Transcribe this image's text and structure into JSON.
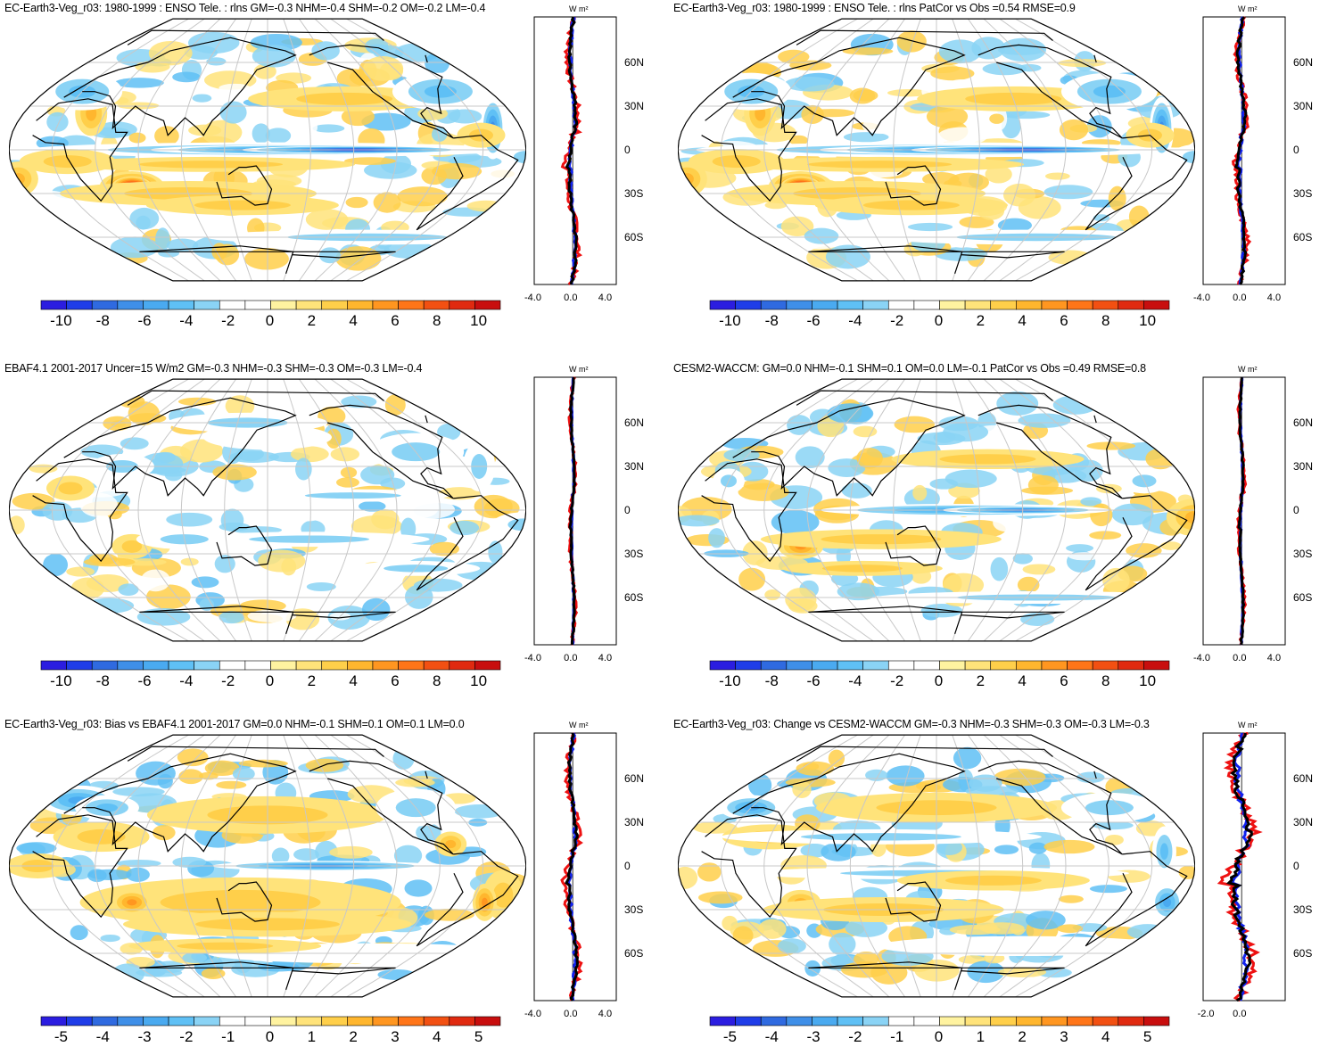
{
  "panels": [
    {
      "id": "p1",
      "title": "EC-Earth3-Veg_r03: 1980-1999 : ENSO Tele. : rlns GM=-0.3 NHM=-0.4 SHM=-0.2 OM=-0.2 LM=-0.4",
      "colorbar_ticks": [
        "-10",
        "-8",
        "-6",
        "-4",
        "-2",
        "0",
        "2",
        "4",
        "6",
        "8",
        "10"
      ],
      "colorbar_range": [
        -11,
        11
      ],
      "zonal_ticks": [
        "-4.0",
        "0.0",
        "4.0"
      ],
      "zonal_unit": "W m²",
      "lat_labels": [
        "60N",
        "30N",
        "0",
        "30S",
        "60S"
      ],
      "style": "enso"
    },
    {
      "id": "p2",
      "title": "EC-Earth3-Veg_r03: 1980-1999 : ENSO Tele. : rlns PatCor vs Obs =0.54 RMSE=0.9",
      "colorbar_ticks": [
        "-10",
        "-8",
        "-6",
        "-4",
        "-2",
        "0",
        "2",
        "4",
        "6",
        "8",
        "10"
      ],
      "colorbar_range": [
        -11,
        11
      ],
      "zonal_ticks": [
        "-4.0",
        "0.0",
        "4.0"
      ],
      "zonal_unit": "W m²",
      "lat_labels": [
        "60N",
        "30N",
        "0",
        "30S",
        "60S"
      ],
      "style": "enso"
    },
    {
      "id": "p3",
      "title": "EBAF4.1 2001-2017 Uncer=15 W/m2 GM=-0.3 NHM=-0.3 SHM=-0.3 OM=-0.3 LM=-0.4",
      "colorbar_ticks": [
        "-10",
        "-8",
        "-6",
        "-4",
        "-2",
        "0",
        "2",
        "4",
        "6",
        "8",
        "10"
      ],
      "colorbar_range": [
        -11,
        11
      ],
      "zonal_ticks": [
        "-4.0",
        "0.0",
        "4.0"
      ],
      "zonal_unit": "W m²",
      "lat_labels": [
        "60N",
        "30N",
        "0",
        "30S",
        "60S"
      ],
      "style": "obs"
    },
    {
      "id": "p4",
      "title": "CESM2-WACCM: GM=0.0 NHM=-0.1 SHM=0.1 OM=0.0 LM=-0.1 PatCor vs Obs =0.49 RMSE=0.8",
      "colorbar_ticks": [
        "-10",
        "-8",
        "-6",
        "-4",
        "-2",
        "0",
        "2",
        "4",
        "6",
        "8",
        "10"
      ],
      "colorbar_range": [
        -11,
        11
      ],
      "zonal_ticks": [
        "-4.0",
        "0.0",
        "4.0"
      ],
      "zonal_unit": "W m²",
      "lat_labels": [
        "60N",
        "30N",
        "0",
        "30S",
        "60S"
      ],
      "style": "cesm"
    },
    {
      "id": "p5",
      "title": "EC-Earth3-Veg_r03: Bias vs EBAF4.1 2001-2017 GM=0.0 NHM=-0.1 SHM=0.1 OM=0.1 LM=0.0",
      "colorbar_ticks": [
        "-5",
        "-4",
        "-3",
        "-2",
        "-1",
        "0",
        "1",
        "2",
        "3",
        "4",
        "5"
      ],
      "colorbar_range": [
        -5.5,
        5.5
      ],
      "zonal_ticks": [
        "-4.0",
        "0.0",
        "4.0"
      ],
      "zonal_unit": "W m²",
      "lat_labels": [
        "60N",
        "30N",
        "0",
        "30S",
        "60S"
      ],
      "style": "bias"
    },
    {
      "id": "p6",
      "title": "EC-Earth3-Veg_r03: Change vs CESM2-WACCM GM=-0.3 NHM=-0.3 SHM=-0.3 OM=-0.3 LM=-0.3",
      "colorbar_ticks": [
        "-5",
        "-4",
        "-3",
        "-2",
        "-1",
        "0",
        "1",
        "2",
        "3",
        "4",
        "5"
      ],
      "colorbar_range": [
        -5.5,
        5.5
      ],
      "zonal_ticks": [
        "-2.0",
        "0.0"
      ],
      "zonal_unit": "W m²",
      "lat_labels": [
        "60N",
        "30N",
        "0",
        "30S",
        "60S"
      ],
      "style": "change"
    }
  ],
  "colors": {
    "palette": [
      "#2b1de0",
      "#1f3de8",
      "#2f6ae0",
      "#3f8fe8",
      "#4aaaf0",
      "#5fc0f5",
      "#8ad3f5",
      "#ffffff",
      "#ffffff",
      "#fff3a0",
      "#ffe37a",
      "#ffcf4a",
      "#ffb62e",
      "#ff9620",
      "#ff7518",
      "#f25012",
      "#e02a10",
      "#c80e0e"
    ],
    "line_model": "#000000",
    "line_obs_red": "#ee1111",
    "line_blue": "#1122ee",
    "grid": "#c8c8c8",
    "coast": "#000000"
  }
}
